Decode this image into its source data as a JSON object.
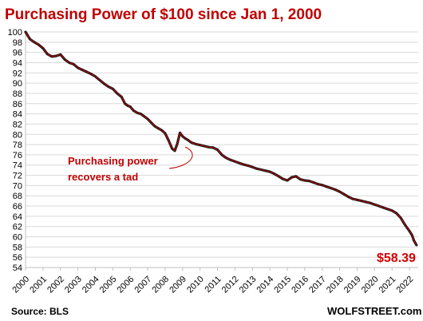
{
  "chart_data": {
    "type": "line",
    "title": "Purchasing  Power of $100 since Jan 1, 2000",
    "xlabel": "",
    "ylabel": "",
    "ylim": [
      54,
      100
    ],
    "y_ticks": [
      "100",
      "98",
      "96",
      "94",
      "92",
      "90",
      "88",
      "86",
      "84",
      "82",
      "80",
      "78",
      "76",
      "74",
      "72",
      "70",
      "68",
      "66",
      "64",
      "62",
      "60",
      "58",
      "56",
      "54"
    ],
    "x_ticks": [
      "2000",
      "2001",
      "2002",
      "2003",
      "2004",
      "2005",
      "2006",
      "2007",
      "2008",
      "2009",
      "2010",
      "2011",
      "2012",
      "2013",
      "2014",
      "2015",
      "2016",
      "2017",
      "2018",
      "2019",
      "2020",
      "2021",
      "2022"
    ],
    "grid": true,
    "series": [
      {
        "color": "#1a1a1a",
        "accent_color": "#d40000",
        "x": [
          2000.0,
          2000.25,
          2000.5,
          2000.75,
          2001.0,
          2001.25,
          2001.5,
          2001.75,
          2002.0,
          2002.25,
          2002.5,
          2002.75,
          2003.0,
          2003.25,
          2003.5,
          2003.75,
          2004.0,
          2004.25,
          2004.5,
          2004.75,
          2005.0,
          2005.25,
          2005.5,
          2005.7,
          2005.85,
          2006.0,
          2006.2,
          2006.4,
          2006.6,
          2006.8,
          2007.0,
          2007.2,
          2007.4,
          2007.6,
          2007.8,
          2008.0,
          2008.2,
          2008.4,
          2008.55,
          2008.7,
          2008.85,
          2009.0,
          2009.15,
          2009.3,
          2009.5,
          2009.75,
          2010.0,
          2010.25,
          2010.5,
          2010.75,
          2011.0,
          2011.25,
          2011.5,
          2011.75,
          2012.0,
          2012.25,
          2012.5,
          2012.75,
          2013.0,
          2013.25,
          2013.5,
          2013.75,
          2014.0,
          2014.25,
          2014.5,
          2014.75,
          2015.0,
          2015.25,
          2015.5,
          2015.75,
          2016.0,
          2016.25,
          2016.5,
          2016.75,
          2017.0,
          2017.25,
          2017.5,
          2017.75,
          2018.0,
          2018.25,
          2018.5,
          2018.75,
          2019.0,
          2019.25,
          2019.5,
          2019.75,
          2020.0,
          2020.25,
          2020.5,
          2020.75,
          2021.0,
          2021.25,
          2021.5,
          2021.75,
          2022.0,
          2022.15,
          2022.25,
          2022.4
        ],
        "values": [
          100.0,
          98.6,
          98.0,
          97.5,
          96.8,
          95.7,
          95.2,
          95.3,
          95.6,
          94.6,
          94.0,
          93.7,
          93.0,
          92.6,
          92.2,
          91.8,
          91.3,
          90.6,
          89.9,
          89.3,
          88.9,
          88.0,
          87.3,
          86.0,
          85.6,
          85.4,
          84.6,
          84.2,
          84.0,
          83.5,
          83.0,
          82.3,
          81.6,
          81.2,
          80.8,
          80.2,
          78.8,
          77.2,
          76.8,
          78.2,
          80.3,
          79.6,
          79.2,
          78.9,
          78.4,
          78.1,
          77.9,
          77.7,
          77.5,
          77.4,
          77.0,
          76.0,
          75.4,
          75.0,
          74.7,
          74.4,
          74.1,
          73.9,
          73.6,
          73.3,
          73.1,
          72.9,
          72.7,
          72.3,
          71.8,
          71.3,
          71.0,
          71.6,
          71.8,
          71.2,
          71.0,
          70.9,
          70.6,
          70.3,
          70.1,
          69.8,
          69.5,
          69.2,
          68.8,
          68.3,
          67.8,
          67.4,
          67.2,
          67.0,
          66.8,
          66.6,
          66.3,
          66.0,
          65.7,
          65.4,
          65.1,
          64.6,
          63.7,
          62.3,
          61.1,
          60.3,
          59.3,
          58.39
        ]
      }
    ],
    "annotations": [
      {
        "line1": "Purchasing power",
        "line2": "recovers a tad"
      },
      {
        "text": "$58.39"
      }
    ],
    "source": "Source: BLS",
    "brand": "WOLFSTREET.com"
  }
}
